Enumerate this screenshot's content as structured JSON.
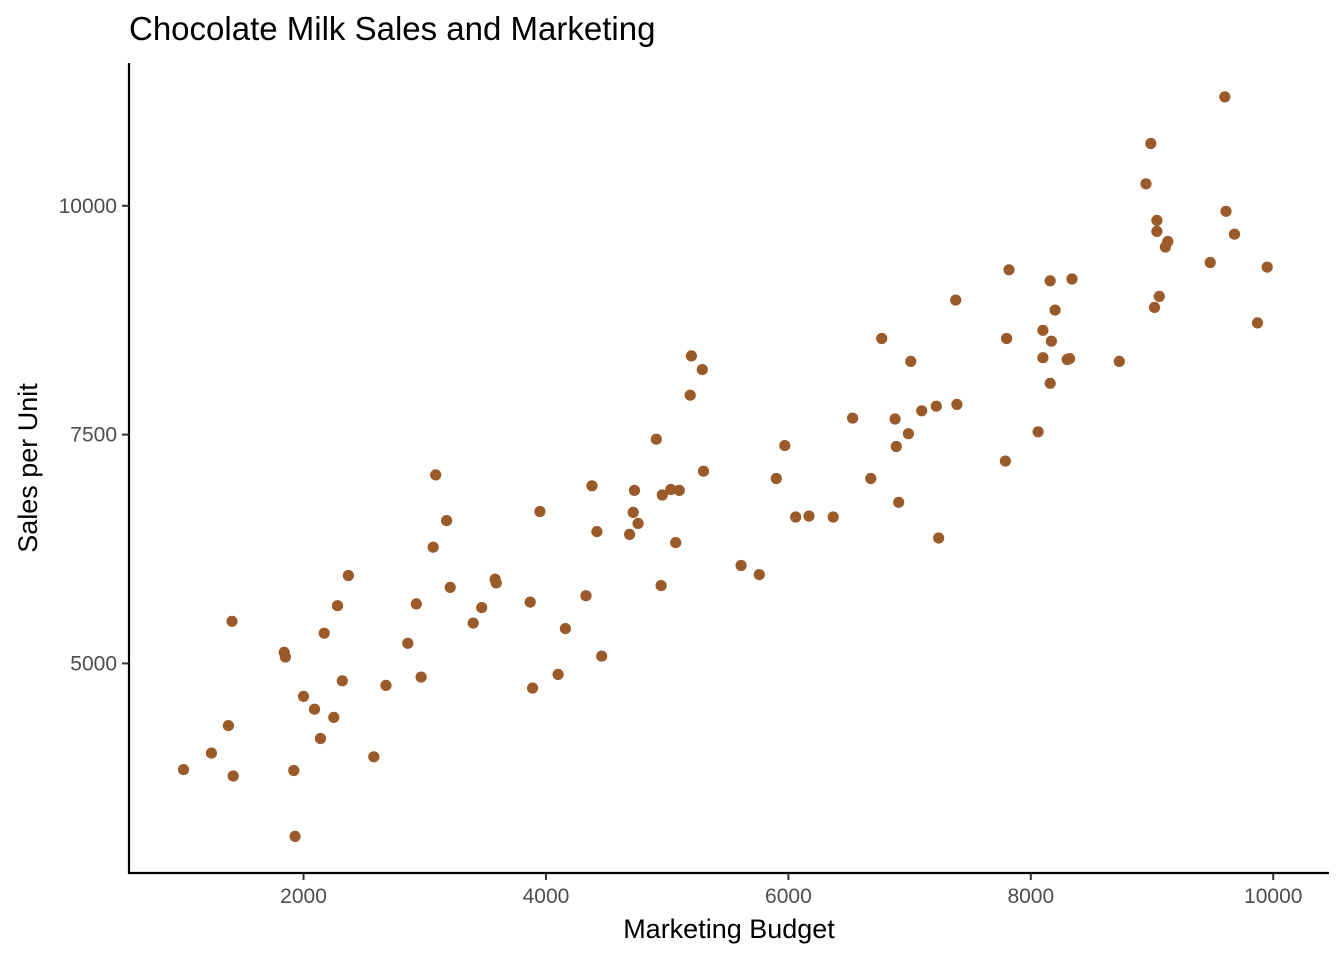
{
  "chart_data": {
    "type": "scatter",
    "title": "Chocolate Milk Sales and Marketing",
    "xlabel": "Marketing Budget",
    "ylabel": "Sales per Unit",
    "xlim": [
      560,
      10460
    ],
    "ylim": [
      2710,
      11560
    ],
    "x_ticks": [
      2000,
      4000,
      6000,
      8000,
      10000
    ],
    "y_ticks": [
      5000,
      7500,
      10000
    ],
    "x_tick_labels": [
      "2000",
      "4000",
      "6000",
      "8000",
      "10000"
    ],
    "y_tick_labels": [
      "5000",
      "7500",
      "10000"
    ],
    "grid": false,
    "point_color": "#9A5A2A",
    "x": [
      1010,
      1240,
      1380,
      1410,
      1420,
      1840,
      1850,
      1920,
      1930,
      2000,
      2090,
      2140,
      2170,
      2250,
      2280,
      2320,
      2370,
      2580,
      2680,
      2860,
      2930,
      2970,
      3070,
      3090,
      3180,
      3210,
      3400,
      3470,
      3580,
      3590,
      3870,
      3890,
      3950,
      4100,
      4160,
      4330,
      4380,
      4420,
      4460,
      4690,
      4720,
      4730,
      4760,
      4910,
      4950,
      4960,
      5030,
      5070,
      5100,
      5190,
      5200,
      5290,
      5300,
      5610,
      5760,
      5900,
      5970,
      6060,
      6170,
      6370,
      6530,
      6680,
      6770,
      6880,
      6890,
      6910,
      6990,
      7010,
      7100,
      7220,
      7240,
      7380,
      7390,
      7790,
      7800,
      7820,
      8060,
      8100,
      8100,
      8160,
      8160,
      8170,
      8200,
      8300,
      8320,
      8340,
      8730,
      8950,
      8990,
      9020,
      9040,
      9040,
      9060,
      9110,
      9130,
      9480,
      9600,
      9610,
      9680,
      9870,
      9950
    ],
    "y": [
      3840,
      4020,
      4320,
      5460,
      3770,
      5120,
      5070,
      3830,
      3110,
      4640,
      4500,
      4180,
      5330,
      4410,
      5630,
      4810,
      5960,
      3980,
      4760,
      5220,
      5650,
      4850,
      6270,
      7060,
      6560,
      5830,
      5440,
      5610,
      5920,
      5880,
      5670,
      4730,
      6660,
      4880,
      5380,
      5740,
      6940,
      6440,
      5080,
      6410,
      6650,
      6890,
      6530,
      7450,
      5850,
      6840,
      6900,
      6320,
      6890,
      7930,
      8360,
      8210,
      7100,
      6070,
      5970,
      7020,
      7380,
      6600,
      6610,
      6600,
      7680,
      7020,
      8550,
      7670,
      7370,
      6760,
      7510,
      8300,
      7760,
      7810,
      6370,
      8970,
      7830,
      7210,
      8550,
      9300,
      7530,
      8640,
      8340,
      9180,
      8060,
      8520,
      8860,
      8320,
      8330,
      9200,
      8300,
      10240,
      10680,
      8890,
      9840,
      9720,
      9010,
      9550,
      9610,
      9380,
      11190,
      9940,
      9690,
      8720,
      9330
    ]
  }
}
